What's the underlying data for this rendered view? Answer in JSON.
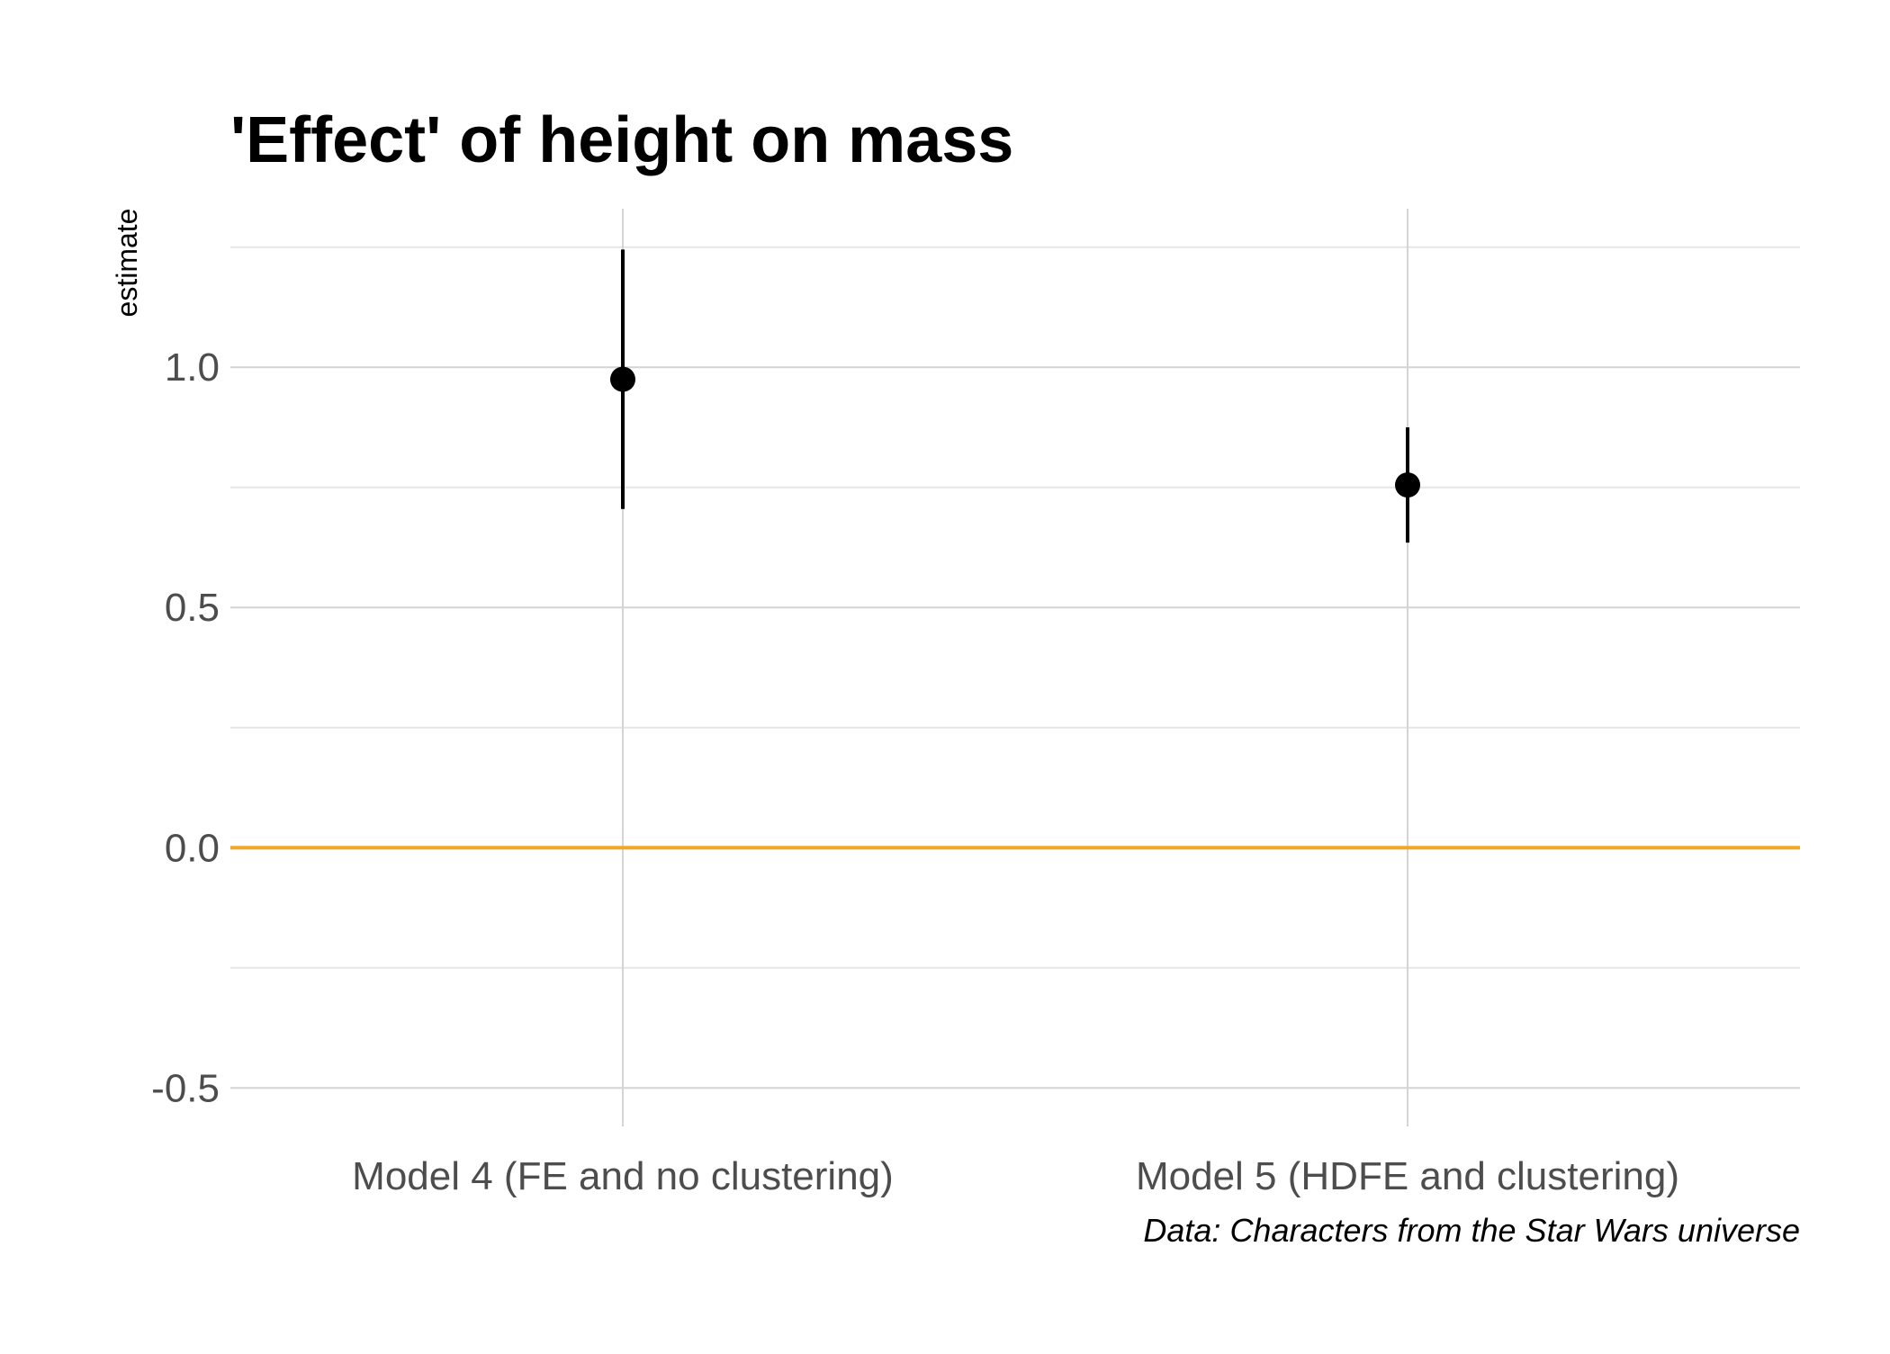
{
  "chart_data": {
    "type": "scatter",
    "title": "'Effect' of height on mass",
    "xlabel": "",
    "ylabel": "estimate",
    "caption": "Data: Characters from the Star Wars universe",
    "categories": [
      "Model 4 (FE and no clustering)",
      "Model 5 (HDFE and clustering)"
    ],
    "estimates": [
      0.975,
      0.755
    ],
    "conf_low": [
      0.705,
      0.635
    ],
    "conf_high": [
      1.245,
      0.875
    ],
    "ylim": [
      -0.58,
      1.33
    ],
    "yticks": [
      -0.5,
      0.0,
      0.5,
      1.0
    ],
    "ytick_labels": [
      "-0.5",
      "0.0",
      "0.5",
      "1.0"
    ],
    "reference_line": 0.0,
    "grid": true,
    "colors": {
      "points": "#000000",
      "reference_line": "#f5a623",
      "grid_major": "#d4d4d4",
      "grid_minor": "#e6e6e6"
    }
  }
}
